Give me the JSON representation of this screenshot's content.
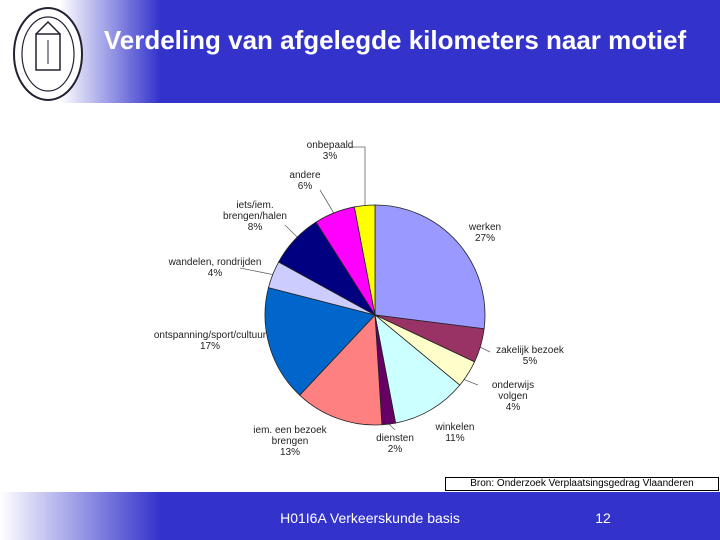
{
  "header": {
    "title": "Verdeling van afgelegde kilometers naar motief"
  },
  "chart_data": {
    "type": "pie",
    "categories": [
      "werken",
      "zakelijk bezoek",
      "onderwijs volgen",
      "winkelen",
      "diensten",
      "iem. een bezoek brengen",
      "ontspanning/sport/cultuur",
      "wandelen, rondrijden",
      "iets/iem. brengen/halen",
      "andere",
      "onbepaald"
    ],
    "values": [
      27,
      5,
      4,
      11,
      2,
      13,
      17,
      4,
      8,
      6,
      3
    ],
    "value_labels": [
      "27%",
      "5%",
      "4%",
      "11%",
      "2%",
      "13%",
      "17%",
      "4%",
      "8%",
      "6%",
      "3%"
    ],
    "colors": [
      "#9999ff",
      "#993366",
      "#ffffcc",
      "#ccffff",
      "#660066",
      "#ff8080",
      "#0066cc",
      "#ccccff",
      "#000080",
      "#ff00ff",
      "#ffff00"
    ]
  },
  "source": "Bron: Onderzoek Verplaatsingsgedrag Vlaanderen",
  "footer": {
    "course": "H01I6A Verkeerskunde basis",
    "page": "12"
  }
}
